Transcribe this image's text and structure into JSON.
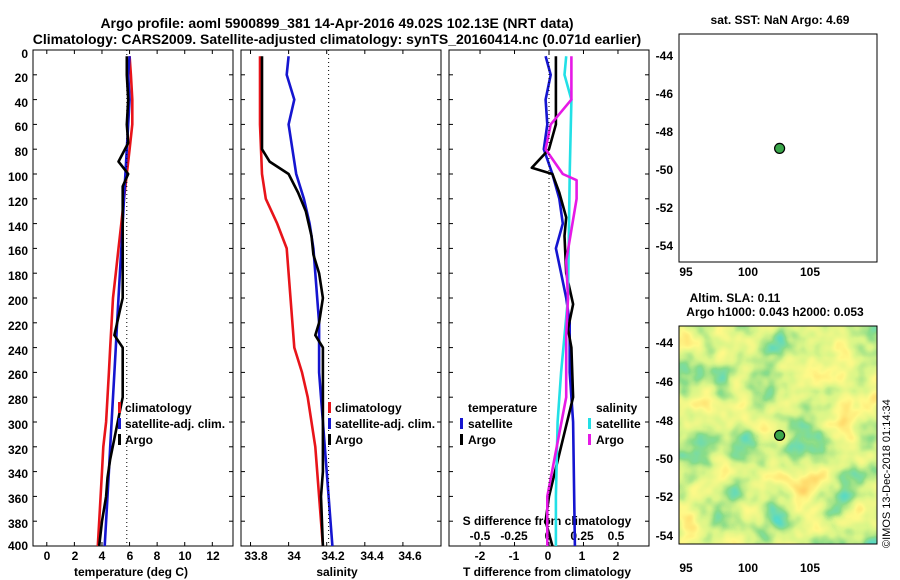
{
  "header": {
    "title_line1": "Argo profile: aoml 5900899_381 14-Apr-2016 49.02S 102.13E (NRT data)",
    "title_line2": "Climatology: CARS2009. Satellite-adjusted climatology: synTS_20160414.nc (0.071d earlier)"
  },
  "colors": {
    "climatology": "#e8141a",
    "satellite": "#1515d0",
    "argo": "#000000",
    "sat_salinity": "#22e0e6",
    "argo_salinity": "#e619e6"
  },
  "legend_labels": {
    "climatology": "climatology",
    "satellite_adj": "satellite-adj. clim.",
    "argo": "Argo",
    "satellite": "satellite",
    "temperature": "temperature",
    "salinity": "salinity"
  },
  "depth_ticks": [
    "0",
    "20",
    "40",
    "60",
    "80",
    "100",
    "120",
    "140",
    "160",
    "180",
    "200",
    "220",
    "240",
    "260",
    "280",
    "300",
    "320",
    "340",
    "360",
    "380",
    "400"
  ],
  "right_panels": {
    "sst_title": "sat. SST: NaN Argo: 4.69",
    "map_lat_ticks": [
      "-44",
      "-46",
      "-48",
      "-50",
      "-52",
      "-54"
    ],
    "map_lon_ticks": [
      "95",
      "100",
      "105"
    ],
    "sla_title_line1": "Altim. SLA: 0.11",
    "sla_title_line2": "Argo h1000: 0.043 h2000: 0.053",
    "watermark": "©IMOS 13-Dec-2018 01:14:34",
    "argo_position": {
      "lon": 102.13,
      "lat": -49.02
    },
    "map_extent": {
      "lon": [
        94,
        110
      ],
      "lat": [
        -55,
        -43
      ]
    }
  },
  "chart_data": [
    {
      "type": "line",
      "title": "",
      "xlabel": "temperature (deg C)",
      "ylabel": "",
      "xlim": [
        -1,
        13.5
      ],
      "ylim": [
        400,
        0
      ],
      "x_ticks": [
        "0",
        "2",
        "4",
        "6",
        "8",
        "10",
        "12"
      ],
      "x_tick_values": [
        0,
        2,
        4,
        6,
        8,
        10,
        12
      ],
      "series": [
        {
          "name": "climatology",
          "color": "#e8141a",
          "points": [
            [
              6.0,
              5
            ],
            [
              6.1,
              20
            ],
            [
              6.2,
              40
            ],
            [
              6.2,
              60
            ],
            [
              6.0,
              80
            ],
            [
              5.8,
              100
            ],
            [
              5.6,
              120
            ],
            [
              5.4,
              140
            ],
            [
              5.2,
              160
            ],
            [
              5.0,
              180
            ],
            [
              4.8,
              200
            ],
            [
              4.7,
              220
            ],
            [
              4.6,
              240
            ],
            [
              4.5,
              260
            ],
            [
              4.4,
              280
            ],
            [
              4.3,
              300
            ],
            [
              4.1,
              320
            ],
            [
              4.0,
              340
            ],
            [
              3.9,
              360
            ],
            [
              3.8,
              380
            ],
            [
              3.7,
              400
            ]
          ]
        },
        {
          "name": "satellite-adj. clim.",
          "color": "#1515d0",
          "points": [
            [
              6.0,
              5
            ],
            [
              5.9,
              20
            ],
            [
              6.0,
              40
            ],
            [
              5.9,
              60
            ],
            [
              5.8,
              80
            ],
            [
              5.7,
              100
            ],
            [
              5.6,
              120
            ],
            [
              5.5,
              140
            ],
            [
              5.4,
              160
            ],
            [
              5.3,
              180
            ],
            [
              5.2,
              200
            ],
            [
              5.1,
              220
            ],
            [
              5.0,
              240
            ],
            [
              4.9,
              260
            ],
            [
              4.8,
              280
            ],
            [
              4.7,
              300
            ],
            [
              4.6,
              320
            ],
            [
              4.5,
              340
            ],
            [
              4.4,
              360
            ],
            [
              4.3,
              380
            ],
            [
              4.2,
              400
            ]
          ]
        },
        {
          "name": "Argo",
          "color": "#000000",
          "points": [
            [
              5.8,
              5
            ],
            [
              5.8,
              20
            ],
            [
              5.9,
              40
            ],
            [
              5.8,
              60
            ],
            [
              5.9,
              75
            ],
            [
              5.2,
              90
            ],
            [
              5.9,
              100
            ],
            [
              5.5,
              110
            ],
            [
              5.5,
              150
            ],
            [
              5.5,
              200
            ],
            [
              5.3,
              210
            ],
            [
              4.9,
              230
            ],
            [
              5.5,
              240
            ],
            [
              5.5,
              280
            ],
            [
              4.6,
              330
            ],
            [
              4.4,
              345
            ],
            [
              4.3,
              360
            ],
            [
              4.0,
              380
            ],
            [
              3.8,
              400
            ]
          ]
        }
      ]
    },
    {
      "type": "line",
      "title": "",
      "xlabel": "salinity",
      "ylabel": "",
      "xlim": [
        33.75,
        34.8
      ],
      "ylim": [
        400,
        0
      ],
      "x_ticks": [
        "33.8",
        "34",
        "34.2",
        "34.4",
        "34.6"
      ],
      "x_tick_values": [
        33.8,
        34.0,
        34.2,
        34.4,
        34.6
      ],
      "series": [
        {
          "name": "climatology",
          "color": "#e8141a",
          "points": [
            [
              33.85,
              5
            ],
            [
              33.85,
              60
            ],
            [
              33.86,
              100
            ],
            [
              33.88,
              120
            ],
            [
              33.94,
              140
            ],
            [
              33.99,
              160
            ],
            [
              34.0,
              180
            ],
            [
              34.01,
              200
            ],
            [
              34.02,
              220
            ],
            [
              34.03,
              240
            ],
            [
              34.07,
              260
            ],
            [
              34.1,
              280
            ],
            [
              34.12,
              300
            ],
            [
              34.14,
              320
            ],
            [
              34.15,
              340
            ],
            [
              34.16,
              360
            ],
            [
              34.17,
              380
            ],
            [
              34.18,
              400
            ]
          ]
        },
        {
          "name": "satellite-adj. clim.",
          "color": "#1515d0",
          "points": [
            [
              34.0,
              5
            ],
            [
              33.99,
              20
            ],
            [
              34.03,
              40
            ],
            [
              34.0,
              60
            ],
            [
              34.02,
              80
            ],
            [
              34.04,
              100
            ],
            [
              34.08,
              120
            ],
            [
              34.11,
              140
            ],
            [
              34.13,
              160
            ],
            [
              34.14,
              180
            ],
            [
              34.15,
              200
            ],
            [
              34.16,
              220
            ],
            [
              34.16,
              260
            ],
            [
              34.17,
              280
            ],
            [
              34.18,
              300
            ],
            [
              34.19,
              320
            ],
            [
              34.2,
              340
            ],
            [
              34.21,
              360
            ],
            [
              34.22,
              380
            ],
            [
              34.23,
              400
            ]
          ]
        },
        {
          "name": "Argo",
          "color": "#000000",
          "points": [
            [
              33.86,
              5
            ],
            [
              33.86,
              80
            ],
            [
              33.9,
              90
            ],
            [
              34.0,
              100
            ],
            [
              34.05,
              115
            ],
            [
              34.09,
              130
            ],
            [
              34.12,
              150
            ],
            [
              34.13,
              165
            ],
            [
              34.16,
              180
            ],
            [
              34.18,
              200
            ],
            [
              34.16,
              220
            ],
            [
              34.14,
              230
            ],
            [
              34.18,
              240
            ],
            [
              34.18,
              340
            ],
            [
              34.17,
              360
            ],
            [
              34.18,
              400
            ]
          ]
        }
      ]
    },
    {
      "type": "line",
      "title": "",
      "xlabel": "T difference from climatology",
      "ylabel": "",
      "xlim": [
        -2.9,
        2.9
      ],
      "ylim": [
        400,
        0
      ],
      "x_ticks": [
        "-2",
        "-1",
        "0",
        "1",
        "2"
      ],
      "x_tick_values": [
        -2,
        -1,
        0,
        1,
        2
      ],
      "secondary_xlabel": "S difference from climatology",
      "secondary_x_ticks": [
        "-0.5",
        "-0.25",
        "0",
        "0.25",
        "0.5"
      ],
      "secondary_x_tick_values": [
        -0.5,
        -0.25,
        0,
        0.25,
        0.5
      ],
      "series": [
        {
          "name": "temperature satellite",
          "color": "#1515d0",
          "points": [
            [
              -0.1,
              5
            ],
            [
              0.05,
              20
            ],
            [
              -0.1,
              40
            ],
            [
              -0.05,
              60
            ],
            [
              -0.15,
              80
            ],
            [
              0.1,
              100
            ],
            [
              0.3,
              120
            ],
            [
              0.4,
              140
            ],
            [
              0.2,
              160
            ],
            [
              0.35,
              180
            ],
            [
              0.5,
              200
            ],
            [
              0.6,
              220
            ],
            [
              0.6,
              260
            ],
            [
              0.7,
              300
            ],
            [
              0.75,
              400
            ]
          ]
        },
        {
          "name": "temperature Argo",
          "color": "#000000",
          "points": [
            [
              0.2,
              5
            ],
            [
              0.2,
              60
            ],
            [
              0.0,
              80
            ],
            [
              -0.5,
              95
            ],
            [
              0.1,
              100
            ],
            [
              0.3,
              115
            ],
            [
              0.5,
              135
            ],
            [
              0.45,
              150
            ],
            [
              0.5,
              180
            ],
            [
              0.7,
              205
            ],
            [
              0.55,
              225
            ],
            [
              0.65,
              240
            ],
            [
              0.7,
              280
            ],
            [
              0.0,
              360
            ],
            [
              -0.1,
              380
            ],
            [
              0.1,
              400
            ]
          ]
        },
        {
          "name": "salinity satellite",
          "color": "#22e0e6",
          "points": [
            [
              0.5,
              5
            ],
            [
              0.45,
              20
            ],
            [
              0.65,
              40
            ],
            [
              0.6,
              100
            ],
            [
              0.55,
              200
            ],
            [
              0.35,
              260
            ],
            [
              0.25,
              300
            ],
            [
              0.2,
              360
            ],
            [
              0.2,
              400
            ]
          ]
        },
        {
          "name": "salinity Argo",
          "color": "#e619e6",
          "points": [
            [
              0.65,
              5
            ],
            [
              0.65,
              40
            ],
            [
              0.05,
              60
            ],
            [
              -0.1,
              80
            ],
            [
              0.4,
              100
            ],
            [
              0.8,
              105
            ],
            [
              0.8,
              120
            ],
            [
              0.5,
              170
            ],
            [
              0.55,
              200
            ],
            [
              0.5,
              230
            ],
            [
              0.5,
              280
            ],
            [
              -0.05,
              360
            ],
            [
              -0.05,
              400
            ]
          ]
        }
      ]
    }
  ]
}
